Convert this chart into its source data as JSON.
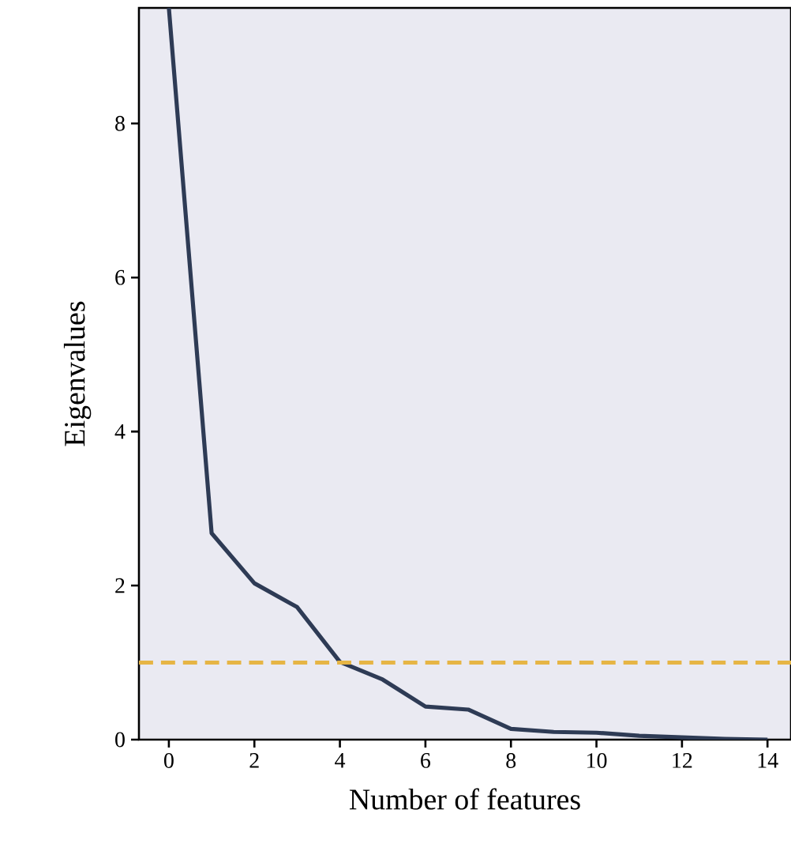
{
  "chart_data": {
    "type": "line",
    "xlabel": "Number of features",
    "ylabel": "Eigenvalues",
    "x": [
      0,
      1,
      2,
      3,
      4,
      5,
      6,
      7,
      8,
      9,
      10,
      11,
      12,
      13,
      14
    ],
    "series": [
      {
        "color": "#2e3b55",
        "values": [
          9.5,
          2.68,
          2.03,
          1.72,
          1.01,
          0.78,
          0.43,
          0.39,
          0.14,
          0.1,
          0.09,
          0.05,
          0.03,
          0.01,
          0.0
        ]
      }
    ],
    "xlim": [
      -0.7,
      14.55
    ],
    "ylim": [
      0,
      9.5
    ],
    "xticks": [
      0,
      2,
      4,
      6,
      8,
      10,
      12,
      14
    ],
    "yticks": [
      0,
      2,
      4,
      6,
      8
    ],
    "ref_lines": [
      {
        "axis": "y",
        "value": 1,
        "color": "#e6b545",
        "line_style": "dashed"
      }
    ],
    "grid": false,
    "marker": "none",
    "line_style": "solid"
  }
}
